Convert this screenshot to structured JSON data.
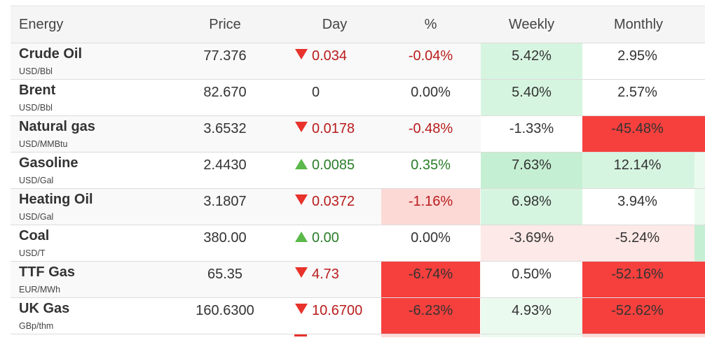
{
  "headers": {
    "energy": "Energy",
    "price": "Price",
    "day": "Day",
    "pct": "%",
    "weekly": "Weekly",
    "monthly": "Monthly"
  },
  "colors": {
    "red_strong": "#f5403d",
    "red_light": "#fdd9d6",
    "red_faint": "#fde9e7",
    "green_medium": "#c5efd2",
    "green_light": "#d6f5e0",
    "green_faint": "#ebfaef",
    "arrow_down": "#e8322b",
    "arrow_up": "#5bb84a"
  },
  "rows": [
    {
      "name": "Crude Oil",
      "unit": "USD/Bbl",
      "price": "77.376",
      "dir": "down",
      "day": "0.034",
      "pct": "-0.04%",
      "weekly": "5.42%",
      "monthly": "2.95%",
      "pct_bg": "#f9f9f9",
      "weekly_bg": "#d6f5e0",
      "monthly_bg": "#ffffff",
      "pct_color": "#b91c1c",
      "weekly_color": "#333333",
      "monthly_color": "#333333"
    },
    {
      "name": "Brent",
      "unit": "USD/Bbl",
      "price": "82.670",
      "dir": "none",
      "day": "0",
      "pct": "0.00%",
      "weekly": "5.40%",
      "monthly": "2.57%",
      "pct_bg": "#ffffff",
      "weekly_bg": "#d6f5e0",
      "monthly_bg": "#ffffff",
      "pct_color": "#333333",
      "weekly_color": "#333333",
      "monthly_color": "#333333"
    },
    {
      "name": "Natural gas",
      "unit": "USD/MMBtu",
      "price": "3.6532",
      "dir": "down",
      "day": "0.0178",
      "pct": "-0.48%",
      "weekly": "-1.33%",
      "monthly": "-45.48%",
      "pct_bg": "#f9f9f9",
      "weekly_bg": "#ffffff",
      "monthly_bg": "#f5403d",
      "pct_color": "#b91c1c",
      "weekly_color": "#333333",
      "monthly_color": "#333333"
    },
    {
      "name": "Gasoline",
      "unit": "USD/Gal",
      "price": "2.4430",
      "dir": "up",
      "day": "0.0085",
      "pct": "0.35%",
      "weekly": "7.63%",
      "monthly": "12.14%",
      "pct_bg": "#ffffff",
      "weekly_bg": "#c5efd2",
      "monthly_bg": "#d6f5e0",
      "pct_color": "#2a7d2a",
      "weekly_color": "#333333",
      "monthly_color": "#333333"
    },
    {
      "name": "Heating Oil",
      "unit": "USD/Gal",
      "price": "3.1807",
      "dir": "down",
      "day": "0.0372",
      "pct": "-1.16%",
      "weekly": "6.98%",
      "monthly": "3.94%",
      "pct_bg": "#fdd9d6",
      "weekly_bg": "#d6f5e0",
      "monthly_bg": "#ffffff",
      "pct_color": "#b91c1c",
      "weekly_color": "#333333",
      "monthly_color": "#333333"
    },
    {
      "name": "Coal",
      "unit": "USD/T",
      "price": "380.00",
      "dir": "up",
      "day": "0.00",
      "pct": "0.00%",
      "weekly": "-3.69%",
      "monthly": "-5.24%",
      "pct_bg": "#ffffff",
      "weekly_bg": "#fde9e7",
      "monthly_bg": "#fde9e7",
      "pct_color": "#333333",
      "weekly_color": "#333333",
      "monthly_color": "#333333"
    },
    {
      "name": "TTF Gas",
      "unit": "EUR/MWh",
      "price": "65.35",
      "dir": "down",
      "day": "4.73",
      "pct": "-6.74%",
      "weekly": "0.50%",
      "monthly": "-52.16%",
      "pct_bg": "#f5403d",
      "weekly_bg": "#ffffff",
      "monthly_bg": "#f5403d",
      "pct_color": "#333333",
      "weekly_color": "#333333",
      "monthly_color": "#333333"
    },
    {
      "name": "UK Gas",
      "unit": "GBp/thm",
      "price": "160.6300",
      "dir": "down",
      "day": "10.6700",
      "pct": "-6.23%",
      "weekly": "4.93%",
      "monthly": "-52.62%",
      "pct_bg": "#f5403d",
      "weekly_bg": "#ebfaef",
      "monthly_bg": "#f5403d",
      "pct_color": "#333333",
      "weekly_color": "#333333",
      "monthly_color": "#333333"
    }
  ]
}
